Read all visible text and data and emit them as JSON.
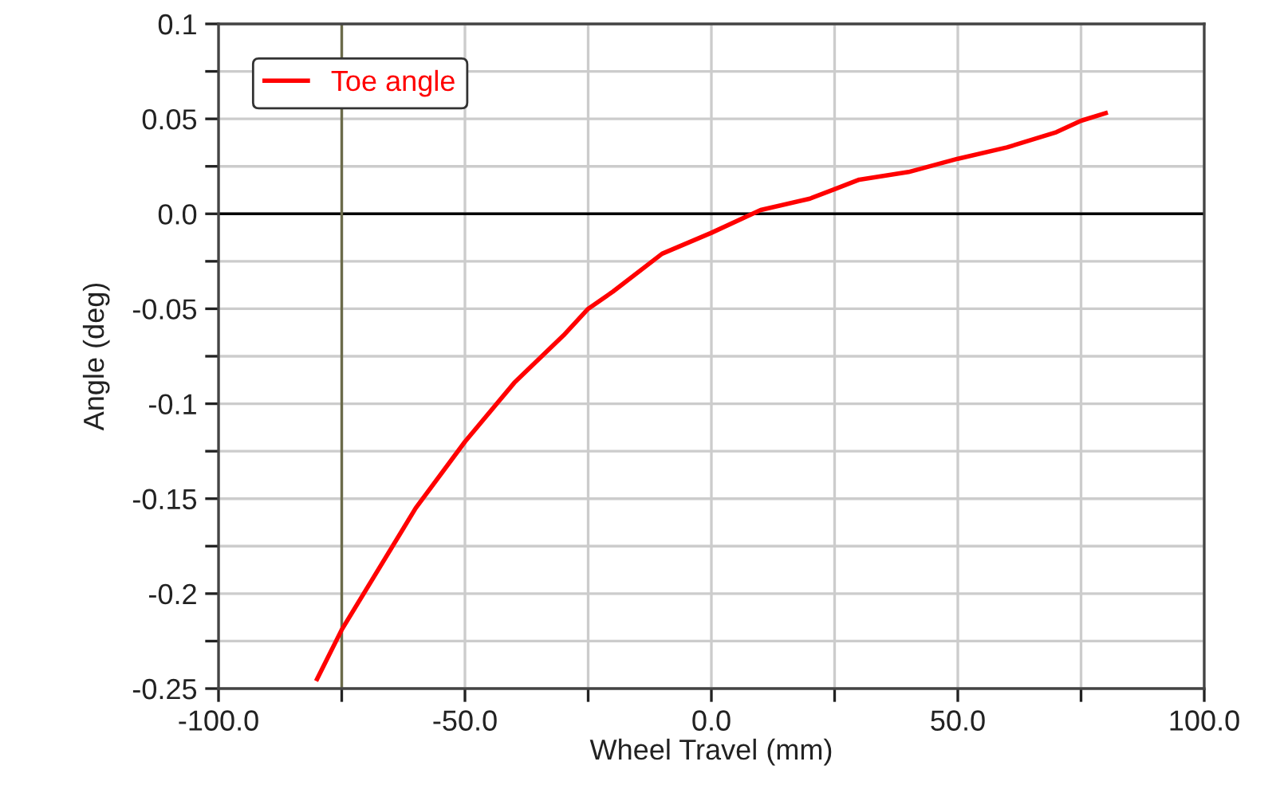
{
  "chart_data": {
    "type": "line",
    "xlabel": "Wheel Travel (mm)",
    "ylabel": "Angle (deg)",
    "xlim": [
      -100,
      100
    ],
    "xticks": [
      {
        "value": -100,
        "label": "-100.0"
      },
      {
        "value": -75,
        "label": null
      },
      {
        "value": -50,
        "label": "-50.0"
      },
      {
        "value": -25,
        "label": null
      },
      {
        "value": 0,
        "label": "0.0"
      },
      {
        "value": 25,
        "label": null
      },
      {
        "value": 50,
        "label": "50.0"
      },
      {
        "value": 75,
        "label": null
      },
      {
        "value": 100,
        "label": "100.0"
      }
    ],
    "ylim": [
      -0.25,
      0.1
    ],
    "yticks": [
      -0.25,
      {
        "value": -0.225,
        "label": null
      },
      -0.2,
      {
        "value": -0.175,
        "label": null
      },
      -0.15,
      {
        "value": -0.125,
        "label": null
      },
      -0.1,
      {
        "value": -0.075,
        "label": null
      },
      -0.05,
      {
        "value": -0.025,
        "label": null
      },
      {
        "value": 0,
        "label": "0.0"
      },
      {
        "value": 0.025,
        "label": null
      },
      0.05,
      {
        "value": 0.075,
        "label": null
      },
      0.1
    ],
    "grid": true,
    "legend": "top left",
    "marker": "none",
    "line_style": "solid",
    "ref_lines": [
      {
        "axis": "y",
        "value": 0,
        "color": "#000000"
      },
      {
        "axis": "x",
        "value": -75,
        "color": "#6b6b4a"
      }
    ],
    "series": [
      {
        "name": "Toe angle",
        "color": "#ff0000",
        "x": [
          -80,
          -75,
          -60,
          -50,
          -40,
          -30,
          -25,
          -20,
          -10,
          0,
          10,
          20,
          25,
          30,
          40,
          50,
          60,
          70,
          75,
          80
        ],
        "values": [
          -0.245,
          -0.219,
          -0.155,
          -0.12,
          -0.089,
          -0.064,
          -0.05,
          -0.041,
          -0.021,
          -0.01,
          0.002,
          0.008,
          0.013,
          0.018,
          0.022,
          0.029,
          0.035,
          0.043,
          0.049,
          0.053
        ]
      }
    ]
  }
}
